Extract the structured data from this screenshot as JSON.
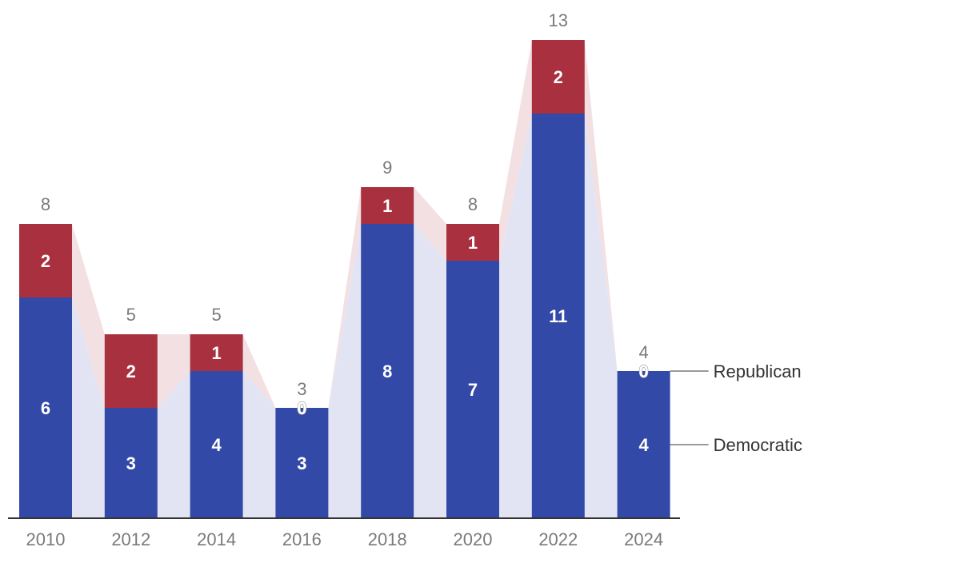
{
  "chart_data": {
    "type": "bar",
    "stacked": true,
    "categories": [
      "2010",
      "2012",
      "2014",
      "2016",
      "2018",
      "2020",
      "2022",
      "2024"
    ],
    "series": [
      {
        "name": "Democratic",
        "values": [
          6,
          3,
          4,
          3,
          8,
          7,
          11,
          4
        ],
        "color": "#3349a8"
      },
      {
        "name": "Republican",
        "values": [
          2,
          2,
          1,
          0,
          1,
          1,
          2,
          0
        ],
        "color": "#a8303f"
      }
    ],
    "totals": [
      8,
      5,
      5,
      3,
      9,
      8,
      13,
      4
    ],
    "ylim": [
      0,
      13
    ],
    "grid": false,
    "legend": "right",
    "band_colors": {
      "Democratic": "#e2e4f3",
      "Republican": "#f3e0e2"
    },
    "axis_color": "#333333"
  }
}
